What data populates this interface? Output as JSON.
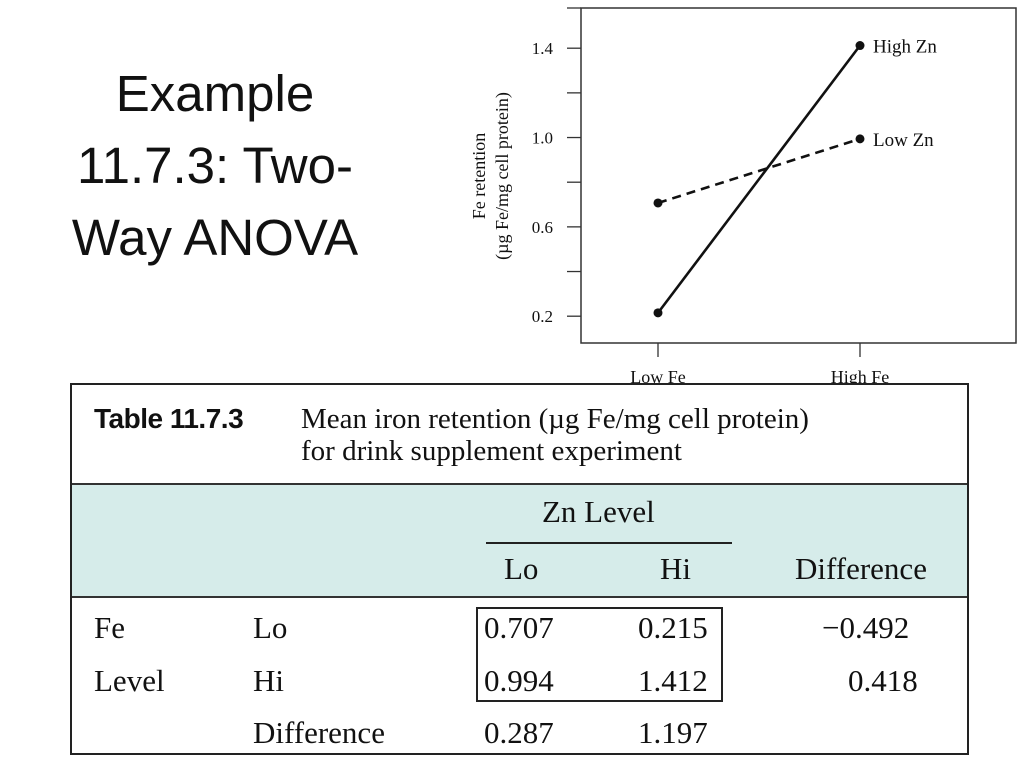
{
  "slide": {
    "title_lines": [
      "Example",
      "11.7.3: Two-",
      "Way ANOVA"
    ]
  },
  "chart_data": {
    "type": "line",
    "categories": [
      "Low Fe",
      "High Fe"
    ],
    "series": [
      {
        "name": "High Zn",
        "values": [
          0.215,
          1.412
        ],
        "style": "solid"
      },
      {
        "name": "Low Zn",
        "values": [
          0.707,
          0.994
        ],
        "style": "dashed"
      }
    ],
    "ylabel_lines": [
      "Fe retention",
      "(µg Fe/mg cell protein)"
    ],
    "xlabel": "",
    "ylim": [
      0.08,
      1.58
    ],
    "yticks": [
      0.2,
      0.6,
      1.0,
      1.4
    ],
    "ytick_labels": [
      "0.2",
      "0.6",
      "1.0",
      "1.4"
    ],
    "colors": {
      "line": "#111111",
      "axis": "#333333"
    }
  },
  "table": {
    "label": "Table 11.7.3",
    "caption_line1": "Mean iron retention (µg Fe/mg cell protein)",
    "caption_line2": "for drink supplement experiment",
    "header_bg": "#d6ecea",
    "zn_level": "Zn Level",
    "col_lo": "Lo",
    "col_hi": "Hi",
    "col_difference": "Difference",
    "fe_label_1": "Fe",
    "fe_label_2": "Level",
    "rows": [
      {
        "level": "Lo",
        "lo": "0.707",
        "hi": "0.215",
        "difference": "−0.492"
      },
      {
        "level": "Hi",
        "lo": "0.994",
        "hi": "1.412",
        "difference": "0.418"
      },
      {
        "level": "Difference",
        "lo": "0.287",
        "hi": "1.197"
      }
    ]
  }
}
